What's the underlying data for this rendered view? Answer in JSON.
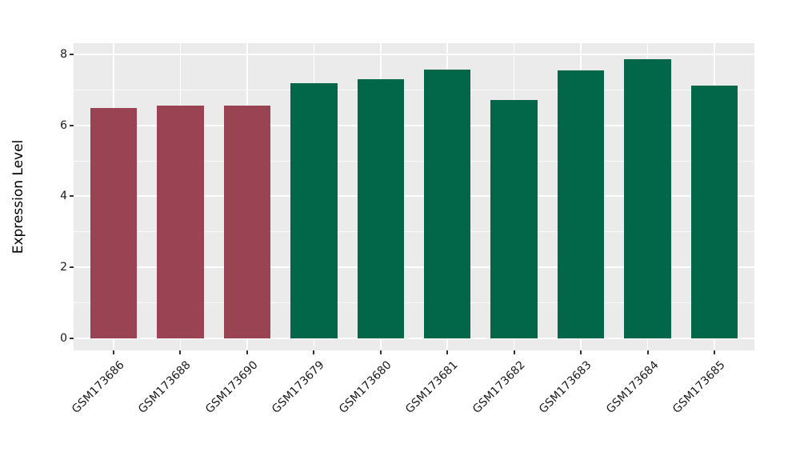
{
  "chart_data": {
    "type": "bar",
    "title": "",
    "xlabel": "",
    "ylabel": "Expression Level",
    "categories": [
      "GSM173686",
      "GSM173688",
      "GSM173690",
      "GSM173679",
      "GSM173680",
      "GSM173681",
      "GSM173682",
      "GSM173683",
      "GSM173684",
      "GSM173685"
    ],
    "values": [
      6.48,
      6.55,
      6.55,
      7.18,
      7.29,
      7.56,
      6.72,
      7.54,
      7.86,
      7.12
    ],
    "bar_colors": [
      "#9A4352",
      "#9A4352",
      "#9A4352",
      "#016748",
      "#016748",
      "#016748",
      "#016748",
      "#016748",
      "#016748",
      "#016748"
    ],
    "group_colors": {
      "group1": "#9A4352",
      "group2": "#016748"
    },
    "ylim": [
      0,
      8
    ],
    "yticks": [
      0,
      2,
      4,
      6,
      8
    ],
    "yticks_minor": [
      1,
      3,
      5,
      7
    ],
    "ytick_labels": [
      "0",
      "2",
      "4",
      "6",
      "8"
    ],
    "bar_width_fraction": 0.7,
    "x_label_rotation_deg": 45,
    "grid": "on",
    "legend": "none",
    "style": {
      "panel_background": "#EBEBEB",
      "grid_color": "#FFFFFF",
      "tick_color": "#333333",
      "text_color": "#1A1A1A",
      "figure_background": "#FFFFFF"
    }
  }
}
